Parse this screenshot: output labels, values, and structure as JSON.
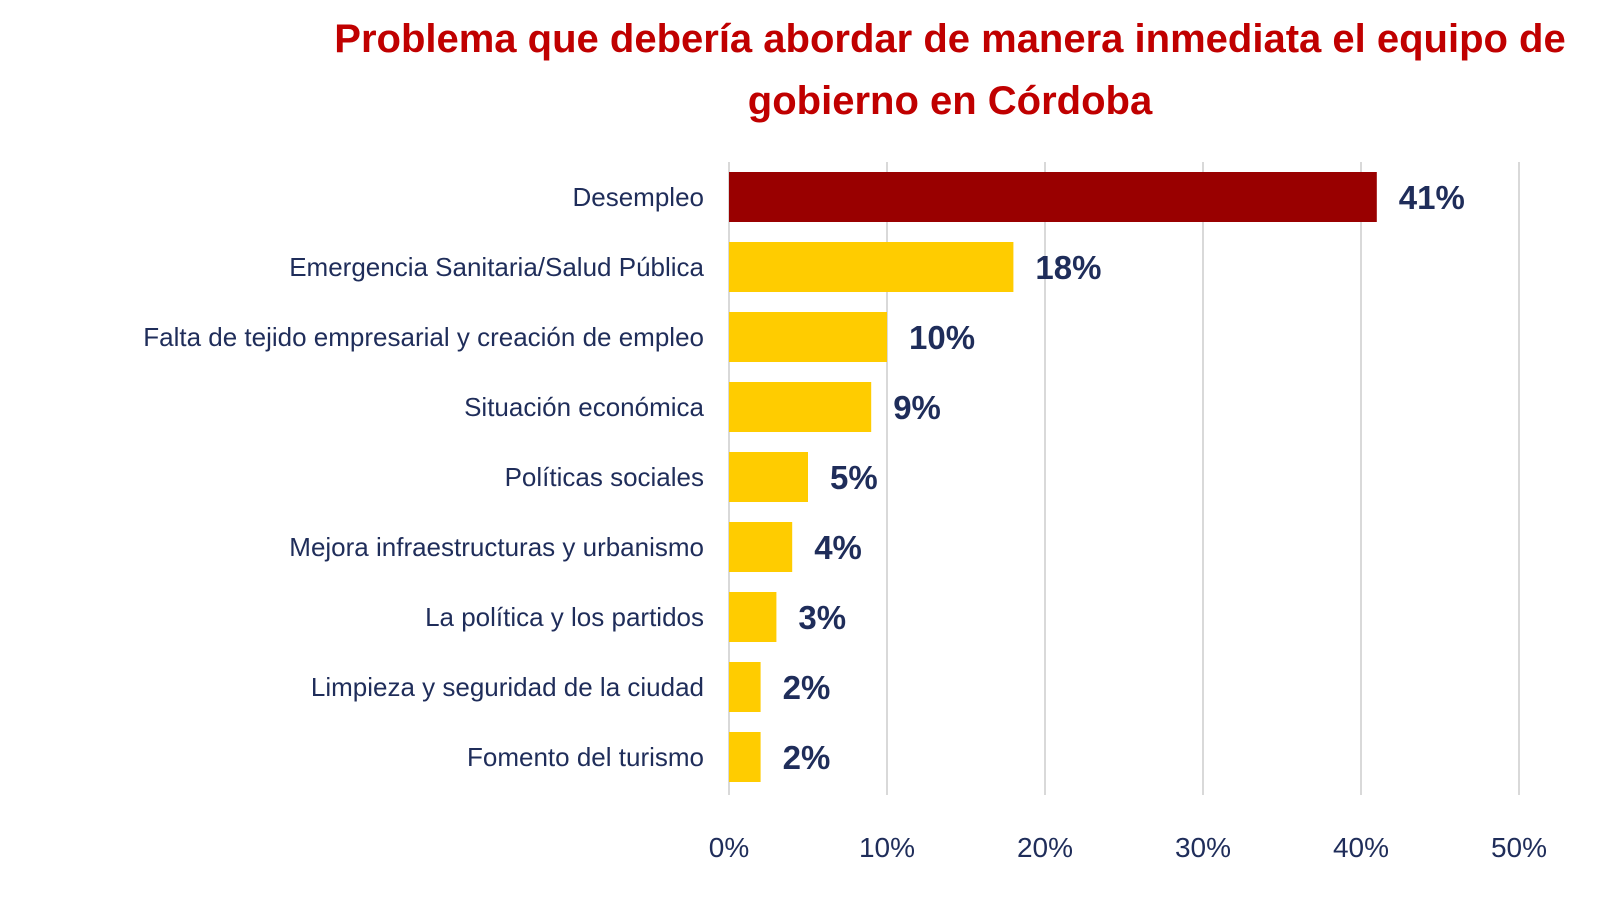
{
  "chart_data": {
    "type": "bar",
    "orientation": "horizontal",
    "title": "Problema que debería abordar de manera inmediata el equipo de gobierno en Córdoba",
    "categories": [
      "Desempleo",
      "Emergencia Sanitaria/Salud Pública",
      "Falta de tejido empresarial y creación de empleo",
      "Situación económica",
      "Políticas sociales",
      "Mejora infraestructuras y urbanismo",
      "La política y los partidos",
      "Limpieza y seguridad de la ciudad",
      "Fomento del turismo"
    ],
    "values": [
      41,
      18,
      10,
      9,
      5,
      4,
      3,
      2,
      2
    ],
    "data_labels": [
      "41%",
      "18%",
      "10%",
      "9%",
      "5%",
      "4%",
      "3%",
      "2%",
      "2%"
    ],
    "xlim": [
      0,
      50
    ],
    "xticks": [
      "0%",
      "10%",
      "20%",
      "30%",
      "40%",
      "50%"
    ],
    "grid": true,
    "xlabel": "",
    "ylabel": "",
    "colors": {
      "highlight": "#990000",
      "bars": "#FFCC00",
      "title": "#C00000",
      "text": "#1F2D5A",
      "grid": "#D9D9D9"
    }
  }
}
